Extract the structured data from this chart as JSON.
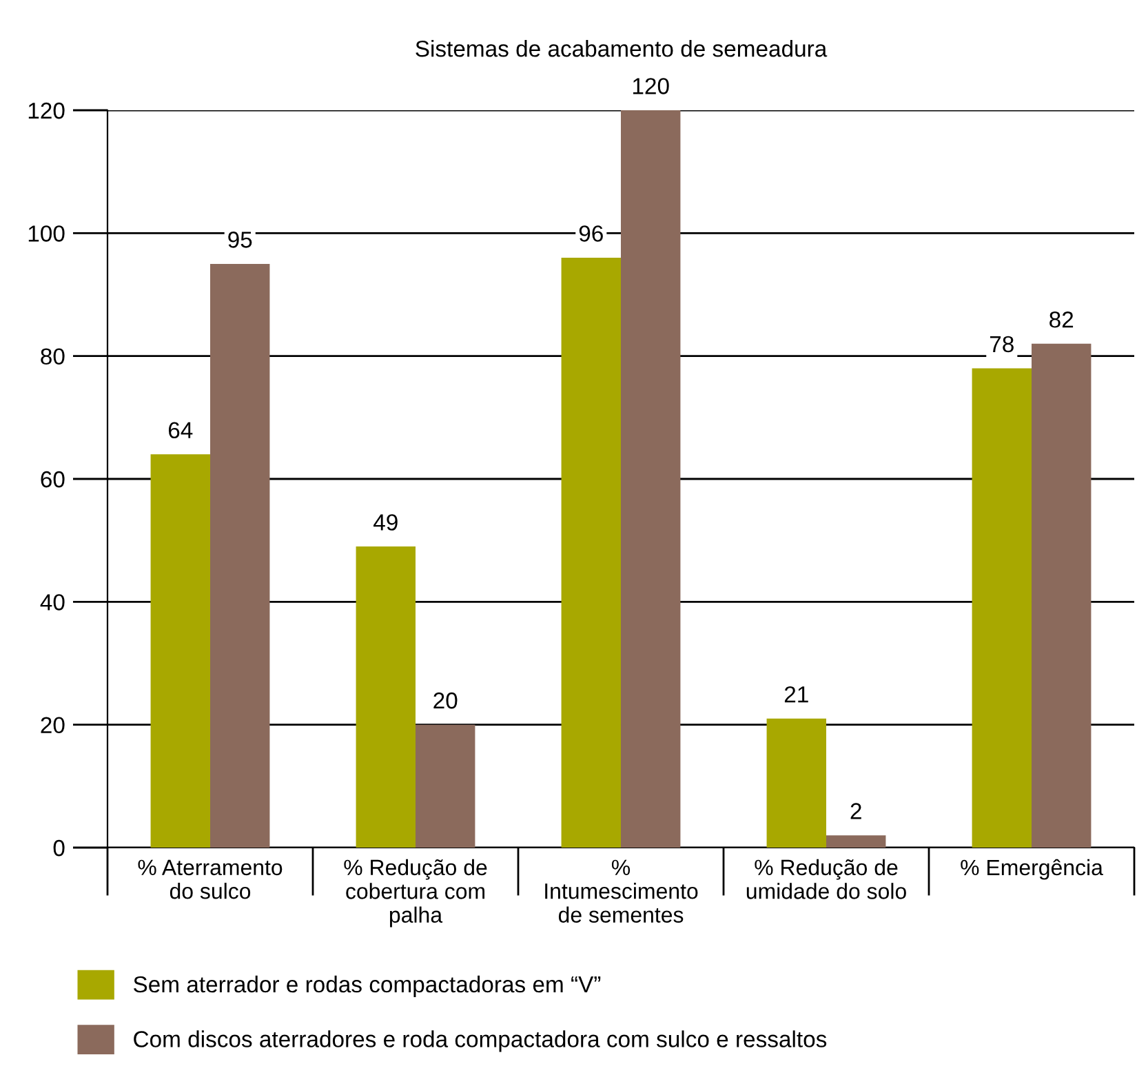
{
  "chart_data": {
    "type": "bar",
    "title": "Sistemas de acabamento de semeadura",
    "categories": [
      "% Aterramento\ndo sulco",
      "% Redução de\ncobertura com\npalha",
      "%\nIntumescimento\nde sementes",
      "% Redução de\numidade do solo",
      "% Emergência"
    ],
    "series": [
      {
        "name": "Sem aterrador e rodas compactadoras em “V”",
        "color": "#a8a800",
        "values": [
          64,
          49,
          96,
          21,
          78
        ]
      },
      {
        "name": "Com discos aterradores e roda compactadora com sulco e ressaltos",
        "color": "#8b6a5c",
        "values": [
          95,
          20,
          120,
          2,
          82
        ]
      }
    ],
    "ylim": [
      0,
      120
    ],
    "yticks": [
      0,
      20,
      40,
      60,
      80,
      100,
      120
    ],
    "grid": "y",
    "legend": "bottom",
    "data_labels": true
  }
}
